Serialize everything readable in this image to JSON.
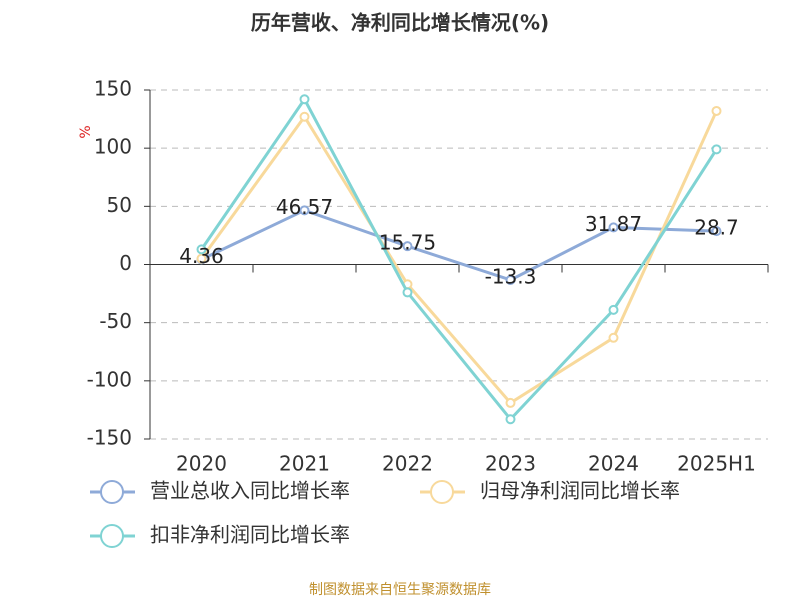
{
  "chart_data": {
    "type": "line",
    "title": "历年营收、净利同比增长情况(%)",
    "y_label": "%",
    "source": "制图数据来自恒生聚源数据库",
    "categories": [
      "2020",
      "2021",
      "2022",
      "2023",
      "2024",
      "2025H1"
    ],
    "series": [
      {
        "name": "营业总收入同比增长率",
        "color": "#8eaad8",
        "values": [
          4.36,
          46.57,
          15.75,
          -13.3,
          31.87,
          28.7
        ],
        "data_labels": true
      },
      {
        "name": "归母净利润同比增长率",
        "color": "#f8d99b",
        "values": [
          5,
          127,
          -17,
          -119,
          -63,
          132
        ]
      },
      {
        "name": "扣非净利润同比增长率",
        "color": "#7fd3d3",
        "values": [
          13,
          142,
          -24,
          -133,
          -39,
          99
        ]
      }
    ],
    "ylim": [
      -150,
      150
    ],
    "yticks": [
      -150,
      -100,
      -50,
      0,
      50,
      100,
      150
    ],
    "grid": true
  }
}
